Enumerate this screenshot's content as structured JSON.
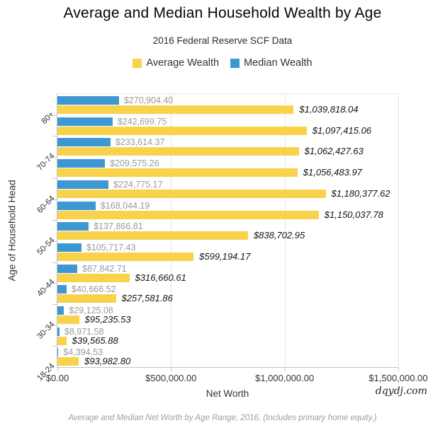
{
  "page": {
    "title": "Average and Median Household Wealth by Age",
    "subtitle": "2016 Federal Reserve SCF Data",
    "caption": "Average and Median Net Worth by Age Range, 2016. (Includes primary home equity.)",
    "watermark": "dqydj.com"
  },
  "chart_data": {
    "type": "bar",
    "orientation": "horizontal",
    "title": "Average and Median Household Wealth by Age",
    "subtitle": "2016 Federal Reserve SCF Data",
    "xlabel": "Net Worth",
    "ylabel": "Age of Household Head",
    "xlim": [
      0,
      1500000
    ],
    "x_tick_labels": [
      "$0.00",
      "$500,000.00",
      "$1,000,000.00",
      "$1,500,000.00"
    ],
    "grid": true,
    "legend_position": "top",
    "colors": {
      "average_bar": "#F8D24B",
      "median_bar": "#3D97D3",
      "average_label": "#141414",
      "median_label": "#9B9B9B",
      "gridline": "#E2E2E2",
      "axis_line": "#C4C4C4"
    },
    "legend": [
      {
        "label": "Average Wealth",
        "color": "#F8D24B"
      },
      {
        "label": "Median Wealth",
        "color": "#3D97D3"
      }
    ],
    "groups": [
      {
        "axis_label": "80+",
        "median": 270904.4,
        "median_label": "$270,904.40",
        "average": 1039818.04,
        "average_label": "$1,039,818.04"
      },
      {
        "axis_label": "",
        "median": 242699.75,
        "median_label": "$242,699.75",
        "average": 1097415.06,
        "average_label": "$1,097,415.06"
      },
      {
        "axis_label": "70-74",
        "median": 233614.37,
        "median_label": "$233,614.37",
        "average": 1062427.63,
        "average_label": "$1,062,427.63"
      },
      {
        "axis_label": "",
        "median": 209575.26,
        "median_label": "$209,575.26",
        "average": 1056483.97,
        "average_label": "$1,056,483.97"
      },
      {
        "axis_label": "60-64",
        "median": 224775.17,
        "median_label": "$224,775.17",
        "average": 1180377.62,
        "average_label": "$1,180,377.62"
      },
      {
        "axis_label": "",
        "median": 168044.19,
        "median_label": "$168,044.19",
        "average": 1150037.78,
        "average_label": "$1,150,037.78"
      },
      {
        "axis_label": "50-54",
        "median": 137866.81,
        "median_label": "$137,866.81",
        "average": 838702.95,
        "average_label": "$838,702.95"
      },
      {
        "axis_label": "",
        "median": 105717.43,
        "median_label": "$105,717.43",
        "average": 599194.17,
        "average_label": "$599,194.17"
      },
      {
        "axis_label": "40-44",
        "median": 87842.71,
        "median_label": "$87,842.71",
        "average": 316660.61,
        "average_label": "$316,660.61"
      },
      {
        "axis_label": "",
        "median": 40666.52,
        "median_label": "$40,666.52",
        "average": 257581.86,
        "average_label": "$257,581.86"
      },
      {
        "axis_label": "30-34",
        "median": 29125.08,
        "median_label": "$29,125.08",
        "average": 95235.53,
        "average_label": "$95,235.53"
      },
      {
        "axis_label": "",
        "median": 8971.58,
        "median_label": "$8,971.58",
        "average": 39565.88,
        "average_label": "$39,565.88"
      },
      {
        "axis_label": "18-24",
        "median": 4394.53,
        "median_label": "$4,394.53",
        "average": 93982.8,
        "average_label": "$93,982.80"
      }
    ]
  }
}
